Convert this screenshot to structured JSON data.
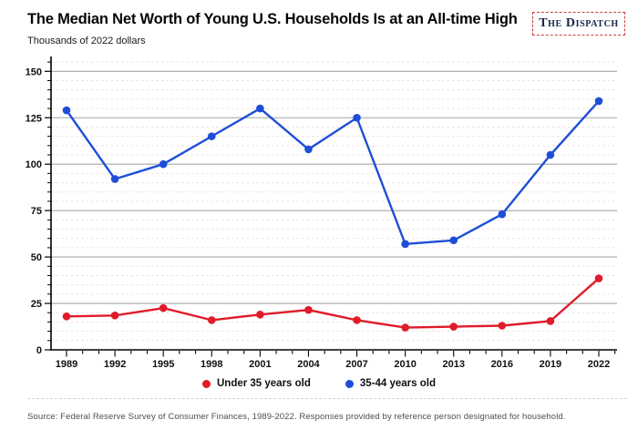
{
  "header": {
    "title": "The Median Net Worth of Young U.S. Households Is at an All-time High",
    "subtitle": "Thousands of 2022 dollars",
    "logo_text": "The Dispatch"
  },
  "source_note": "Source: Federal Reserve Survey of Consumer Finances, 1989-2022. Responses provided by reference person designated for household.",
  "colors": {
    "under_35": "#e01b2a",
    "35_44": "#1e4ed8",
    "major_grid": "#a6a6a6",
    "minor_grid": "#ecdfe0",
    "axis": "#000000",
    "logo_border": "#c54242",
    "logo_text": "#17264d"
  },
  "chart_data": {
    "type": "line",
    "title": "The Median Net Worth of Young U.S. Households Is at an All-time High",
    "units_label": "Thousands of 2022 dollars",
    "categories": [
      "1989",
      "1992",
      "1995",
      "1998",
      "2001",
      "2004",
      "2007",
      "2010",
      "2013",
      "2016",
      "2019",
      "2022"
    ],
    "series": [
      {
        "name": "Under 35 years old",
        "color": "#e01b2a",
        "values": [
          18,
          18.5,
          22.5,
          16,
          19,
          21.5,
          16,
          12,
          12.5,
          13,
          15.5,
          38.5
        ]
      },
      {
        "name": "35-44 years old",
        "color": "#1e4ed8",
        "values": [
          129,
          92,
          100,
          115,
          130,
          108,
          125,
          57,
          59,
          73,
          105,
          134
        ]
      }
    ],
    "xlabel": "",
    "ylabel": "Thousands of 2022 dollars",
    "ylim": [
      0,
      158
    ],
    "yticks": [
      0,
      25,
      50,
      75,
      100,
      125,
      150
    ],
    "minor_y_step": 5,
    "x_major_label_every_years": 3,
    "x_minor_tick_every_years": 1,
    "grid": true,
    "legend_position": "bottom"
  }
}
